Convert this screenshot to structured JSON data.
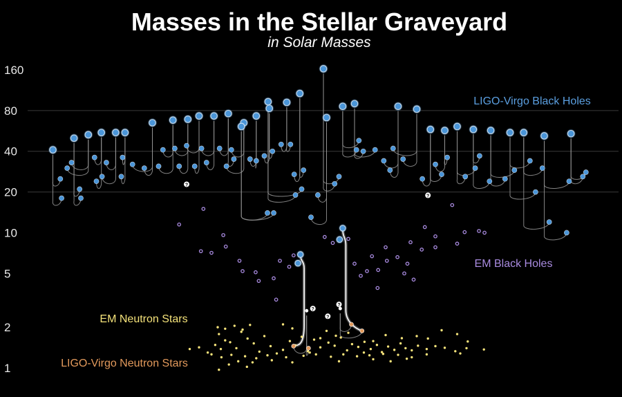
{
  "chart_data": {
    "type": "scatter",
    "title": "Masses in the Stellar Graveyard",
    "subtitle": "in Solar Masses",
    "y_scale": "log",
    "ylim": [
      0.85,
      200
    ],
    "y_ticks": [
      160,
      80,
      40,
      20,
      10,
      5,
      2,
      1
    ],
    "grid_lines_at": [
      80,
      40,
      20
    ],
    "colors": {
      "background": "#000000",
      "ligo_black_holes": "#4a95d8",
      "em_black_holes": "#a98be0",
      "em_neutron_stars": "#f4e27a",
      "ligo_neutron_stars": "#e39a5c",
      "merger_lines": "#9a9a9a",
      "gridline": "#3a3a3a"
    },
    "series": [
      {
        "name": "LIGO-Virgo Black Holes",
        "key": "ligo_bh",
        "mergers": [
          [
            0.085,
            41,
            0.099,
            18,
            0.097,
            25
          ],
          [
            0.119,
            50,
            0.13,
            18,
            0.128,
            21
          ],
          [
            0.142,
            53,
            0.115,
            33,
            0.108,
            30
          ],
          [
            0.163,
            55,
            0.155,
            24,
            0.152,
            36
          ],
          [
            0.186,
            55,
            0.171,
            33,
            0.164,
            26
          ],
          [
            0.201,
            55,
            0.195,
            26,
            0.197,
            36
          ],
          [
            0.245,
            65,
            0.213,
            32,
            0.232,
            30
          ],
          [
            0.278,
            68,
            0.255,
            31,
            0.262,
            41
          ],
          [
            0.302,
            69,
            0.288,
            31,
            0.281,
            42
          ],
          [
            0.32,
            73,
            0.313,
            31,
            0.3,
            44
          ],
          [
            0.344,
            73,
            0.324,
            42,
            0.332,
            33
          ],
          [
            0.367,
            76,
            0.353,
            42,
            0.376,
            35
          ],
          [
            0.392,
            65,
            0.364,
            31,
            0.372,
            41
          ],
          [
            0.412,
            73,
            0.402,
            35,
            0.412,
            34
          ],
          [
            0.433,
            83,
            0.425,
            37,
            0.438,
            40
          ],
          [
            0.461,
            92,
            0.452,
            45,
            0.467,
            45
          ],
          [
            0.482,
            107,
            0.473,
            27,
            0.488,
            29
          ],
          [
            0.52,
            163,
            0.538,
            23,
            0.545,
            26
          ],
          [
            0.551,
            86,
            0.573,
            41,
            0.577,
            48
          ],
          [
            0.57,
            90,
            0.584,
            40,
            0.603,
            41
          ],
          [
            0.64,
            86,
            0.617,
            34,
            0.627,
            29
          ],
          [
            0.67,
            82,
            0.632,
            42,
            0.648,
            35
          ],
          [
            0.692,
            58,
            0.679,
            25,
            0.71,
            27
          ],
          [
            0.715,
            57,
            0.7,
            32,
            0.719,
            36
          ],
          [
            0.735,
            61,
            0.748,
            26,
            0.764,
            30
          ],
          [
            0.761,
            58,
            0.787,
            24,
            0.771,
            37
          ],
          [
            0.789,
            57,
            0.812,
            25,
            0.827,
            29
          ],
          [
            0.82,
            55,
            0.861,
            20,
            0.852,
            34
          ],
          [
            0.842,
            55,
            0.883,
            12,
            0.872,
            30
          ],
          [
            0.875,
            52,
            0.911,
            10,
            0.915,
            24
          ],
          [
            0.918,
            54,
            0.937,
            26,
            0.942,
            28
          ],
          [
            0.388,
            61,
            0.43,
            14,
            0.44,
            14
          ],
          [
            0.431,
            93,
            0.485,
            21,
            0.475,
            19
          ],
          [
            0.525,
            71,
            0.5,
            13,
            0.511,
            19
          ]
        ]
      },
      {
        "name": "EM Black Holes",
        "key": "em_bh",
        "points": [
          [
            0.288,
            11.5
          ],
          [
            0.327,
            15
          ],
          [
            0.359,
            9.6
          ],
          [
            0.323,
            7.3
          ],
          [
            0.34,
            7.1
          ],
          [
            0.363,
            7.9
          ],
          [
            0.385,
            6.2
          ],
          [
            0.39,
            5.2
          ],
          [
            0.411,
            5.1
          ],
          [
            0.416,
            4.4
          ],
          [
            0.44,
            4.6
          ],
          [
            0.465,
            5.6
          ],
          [
            0.472,
            6.8
          ],
          [
            0.57,
            5.9
          ],
          [
            0.59,
            5.2
          ],
          [
            0.608,
            5.3
          ],
          [
            0.622,
            6.2
          ],
          [
            0.639,
            6.6
          ],
          [
            0.655,
            5.9
          ],
          [
            0.665,
            4.5
          ],
          [
            0.678,
            7.5
          ],
          [
            0.7,
            7.8
          ],
          [
            0.735,
            8.3
          ],
          [
            0.66,
            8.5
          ],
          [
            0.683,
            11
          ],
          [
            0.727,
            16
          ],
          [
            0.747,
            10.1
          ],
          [
            0.779,
            10
          ],
          [
            0.45,
            6.2
          ],
          [
            0.65,
            5.0
          ],
          [
            0.62,
            7.8
          ],
          [
            0.7,
            9.4
          ],
          [
            0.77,
            10.3
          ],
          [
            0.444,
            3.2
          ],
          [
            0.522,
            9.3
          ],
          [
            0.535,
            8.4
          ],
          [
            0.56,
            9.0
          ],
          [
            0.607,
            3.9
          ],
          [
            0.58,
            4.8
          ],
          [
            0.598,
            6.7
          ]
        ]
      },
      {
        "name": "EM Neutron Stars",
        "key": "em_ns",
        "points": [
          [
            0.305,
            1.38
          ],
          [
            0.32,
            1.42
          ],
          [
            0.334,
            1.3
          ],
          [
            0.346,
            1.48
          ],
          [
            0.352,
            1.78
          ],
          [
            0.362,
            1.6
          ],
          [
            0.37,
            1.55
          ],
          [
            0.38,
            1.4
          ],
          [
            0.388,
            1.85
          ],
          [
            0.398,
            1.65
          ],
          [
            0.408,
            1.52
          ],
          [
            0.417,
            1.32
          ],
          [
            0.425,
            1.72
          ],
          [
            0.435,
            1.45
          ],
          [
            0.445,
            1.28
          ],
          [
            0.455,
            1.36
          ],
          [
            0.466,
            1.58
          ],
          [
            0.475,
            1.47
          ],
          [
            0.485,
            1.7
          ],
          [
            0.495,
            1.33
          ],
          [
            0.505,
            1.62
          ],
          [
            0.515,
            1.42
          ],
          [
            0.528,
            1.54
          ],
          [
            0.538,
            1.46
          ],
          [
            0.548,
            1.68
          ],
          [
            0.558,
            1.35
          ],
          [
            0.566,
            1.5
          ],
          [
            0.576,
            1.43
          ],
          [
            0.586,
            1.56
          ],
          [
            0.596,
            1.38
          ],
          [
            0.606,
            1.48
          ],
          [
            0.614,
            1.31
          ],
          [
            0.624,
            1.44
          ],
          [
            0.634,
            1.36
          ],
          [
            0.644,
            1.52
          ],
          [
            0.652,
            1.4
          ],
          [
            0.662,
            1.35
          ],
          [
            0.672,
            1.46
          ],
          [
            0.686,
            1.38
          ],
          [
            0.7,
            1.45
          ],
          [
            0.715,
            1.41
          ],
          [
            0.732,
            1.33
          ],
          [
            0.75,
            1.4
          ],
          [
            0.778,
            1.37
          ],
          [
            0.356,
            1.2
          ],
          [
            0.372,
            1.25
          ],
          [
            0.394,
            1.22
          ],
          [
            0.412,
            1.18
          ],
          [
            0.43,
            1.24
          ],
          [
            0.46,
            1.2
          ],
          [
            0.488,
            1.23
          ],
          [
            0.508,
            1.26
          ],
          [
            0.532,
            1.21
          ],
          [
            0.552,
            1.26
          ],
          [
            0.574,
            1.22
          ],
          [
            0.594,
            1.24
          ],
          [
            0.616,
            1.27
          ],
          [
            0.64,
            1.25
          ],
          [
            0.662,
            1.2
          ],
          [
            0.686,
            1.26
          ],
          [
            0.34,
            1.26
          ],
          [
            0.355,
            1.38
          ],
          [
            0.368,
            1.06
          ],
          [
            0.383,
            1.12
          ],
          [
            0.406,
            1.1
          ],
          [
            0.352,
            0.97
          ],
          [
            0.397,
            1.02
          ],
          [
            0.437,
            1.14
          ],
          [
            0.47,
            1.1
          ],
          [
            0.545,
            1.12
          ],
          [
            0.585,
            1.3
          ],
          [
            0.6,
            1.58
          ],
          [
            0.62,
            1.75
          ],
          [
            0.646,
            1.66
          ],
          [
            0.67,
            1.72
          ],
          [
            0.688,
            1.65
          ],
          [
            0.71,
            1.9
          ],
          [
            0.735,
            1.78
          ],
          [
            0.752,
            1.57
          ],
          [
            0.6,
            1.16
          ],
          [
            0.628,
            1.12
          ],
          [
            0.654,
            1.17
          ],
          [
            0.74,
            1.28
          ],
          [
            0.35,
            2.0
          ],
          [
            0.362,
            1.95
          ],
          [
            0.377,
            2.05
          ],
          [
            0.39,
            1.92
          ],
          [
            0.402,
            2.08
          ],
          [
            0.455,
            2.1
          ],
          [
            0.47,
            1.96
          ],
          [
            0.498,
            1.3
          ],
          [
            0.515,
            1.66
          ],
          [
            0.525,
            1.88
          ],
          [
            0.54,
            1.73
          ],
          [
            0.56,
            1.82
          ]
        ]
      },
      {
        "name": "LIGO-Virgo Neutron Stars",
        "key": "ligo_ns",
        "mergers": [
          [
            0.493,
            2.65,
            0.472,
            1.45,
            0.496,
            1.4
          ],
          [
            0.547,
            2.75,
            0.582,
            1.88,
            0.565,
            2.1
          ]
        ]
      }
    ],
    "highlight_mergers": [
      [
        0.479,
        5.95,
        0.483,
        6.9,
        0.471,
        1.47
      ],
      [
        0.546,
        8.9,
        0.551,
        10.8,
        0.58,
        1.88
      ]
    ],
    "unknown_markers": [
      [
        0.3,
        22.8
      ],
      [
        0.688,
        18.9
      ],
      [
        0.503,
        2.75
      ],
      [
        0.527,
        2.41
      ],
      [
        0.545,
        2.95
      ]
    ],
    "unknown_marker_glyph": "?"
  }
}
